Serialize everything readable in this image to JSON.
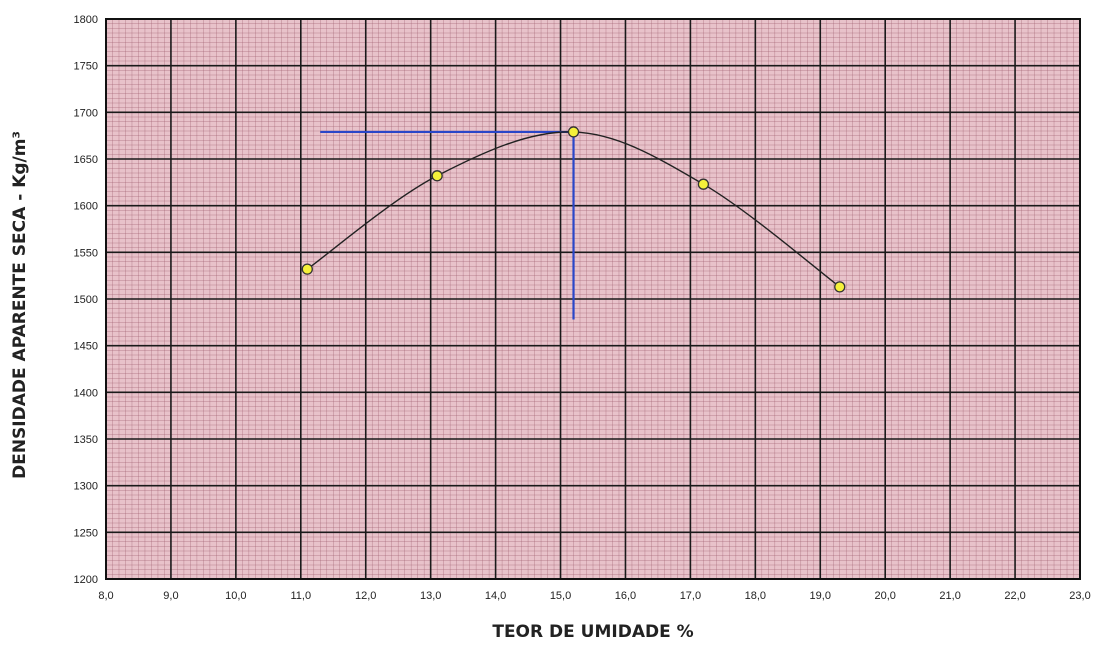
{
  "chart_data": {
    "type": "scatter",
    "xlabel": "TEOR DE UMIDADE %",
    "ylabel": "DENSIDADE APARENTE SECA - Kg/m³",
    "xlim": [
      8.0,
      23.0
    ],
    "ylim": [
      1200,
      1800
    ],
    "x_ticks": [
      "8,0",
      "9,0",
      "10,0",
      "11,0",
      "12,0",
      "13,0",
      "14,0",
      "15,0",
      "16,0",
      "17,0",
      "18,0",
      "19,0",
      "20,0",
      "21,0",
      "22,0",
      "23,0"
    ],
    "y_ticks": [
      "1200",
      "1250",
      "1300",
      "1350",
      "1400",
      "1450",
      "1500",
      "1550",
      "1600",
      "1650",
      "1700",
      "1750",
      "1800"
    ],
    "grid": true,
    "series": [
      {
        "points": [
          {
            "x": 11.1,
            "y": 1532
          },
          {
            "x": 13.1,
            "y": 1632
          },
          {
            "x": 15.2,
            "y": 1679
          },
          {
            "x": 17.2,
            "y": 1623
          },
          {
            "x": 19.3,
            "y": 1513
          }
        ],
        "smooth_line": true,
        "marker_color": "#f5f03a",
        "line_color": "#222222"
      }
    ],
    "reference_lines": {
      "horizontal": {
        "y": 1679,
        "x_from": 11.3,
        "x_to": 15.2
      },
      "vertical": {
        "x": 15.2,
        "y_from": 1478,
        "y_to": 1679
      },
      "color": "#2a46c8"
    },
    "colors": {
      "plot_background": "#e8c2ca",
      "fine_grid": "#a06070",
      "major_grid": "#1a1a1a"
    }
  }
}
